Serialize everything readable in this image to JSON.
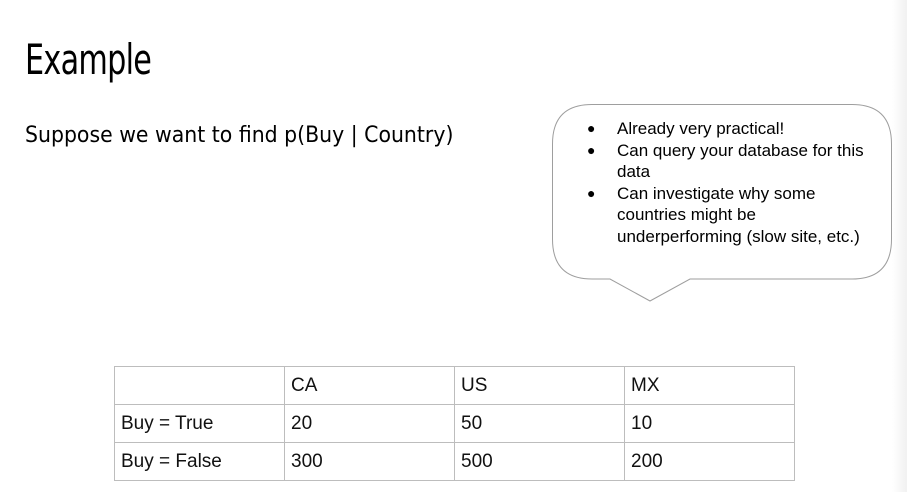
{
  "slide": {
    "title": "Example",
    "subtitle": "Suppose we want to find p(Buy | Country)"
  },
  "callout": {
    "bullets": [
      "Already very practical!",
      "Can query your database for this data",
      "Can investigate why some countries might be underperforming (slow site, etc.)"
    ]
  },
  "table": {
    "header": [
      "",
      "CA",
      "US",
      "MX"
    ],
    "rows": [
      [
        "Buy = True",
        "20",
        "50",
        "10"
      ],
      [
        "Buy = False",
        "300",
        "500",
        "200"
      ]
    ]
  }
}
